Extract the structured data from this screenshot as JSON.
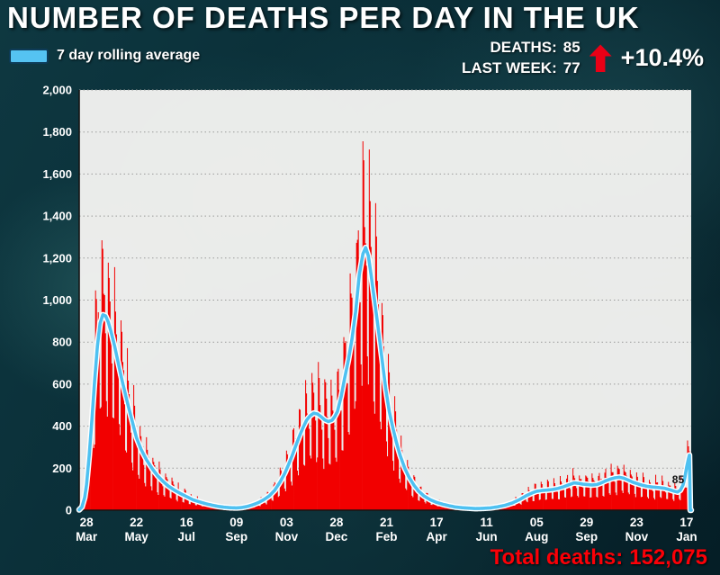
{
  "title": "NUMBER OF DEATHS PER DAY IN THE UK",
  "legend": {
    "label": "7 day rolling average",
    "swatch_color": "#55c3f2"
  },
  "stats": {
    "lines": [
      {
        "label": "DEATHS:",
        "value": "85"
      },
      {
        "label": "LAST WEEK:",
        "value": "77"
      }
    ],
    "change": "+10.4%",
    "arrow_icon": "up-arrow",
    "arrow_color": "#ea0016"
  },
  "footer": {
    "total_label": "Total deaths:",
    "total_value": "152,075",
    "color": "#fb0007"
  },
  "chart_data": {
    "type": "bar+line",
    "title": "NUMBER OF DEATHS PER DAY IN THE UK",
    "xlabel": "",
    "ylabel": "",
    "ylim": [
      0,
      2000
    ],
    "grid": "horizontal-dotted",
    "legend_position": "top-left",
    "bar_color": "#f20000",
    "line_color": "#4ec1f1",
    "x_domain": [
      -8,
      665
    ],
    "tick_days": [
      0,
      55,
      110,
      165,
      220,
      275,
      330,
      385,
      440,
      495,
      550,
      605,
      660
    ],
    "x_ticks": [
      {
        "day": "28",
        "month": "Mar"
      },
      {
        "day": "22",
        "month": "May"
      },
      {
        "day": "16",
        "month": "Jul"
      },
      {
        "day": "09",
        "month": "Sep"
      },
      {
        "day": "03",
        "month": "Nov"
      },
      {
        "day": "28",
        "month": "Dec"
      },
      {
        "day": "21",
        "month": "Feb"
      },
      {
        "day": "17",
        "month": "Apr"
      },
      {
        "day": "11",
        "month": "Jun"
      },
      {
        "day": "05",
        "month": "Aug"
      },
      {
        "day": "29",
        "month": "Sep"
      },
      {
        "day": "23",
        "month": "Nov"
      },
      {
        "day": "17",
        "month": "Jan"
      }
    ],
    "y_ticks": [
      {
        "label": "2,000",
        "value": 2000
      },
      {
        "label": "1,800",
        "value": 1800
      },
      {
        "label": "1,600",
        "value": 1600
      },
      {
        "label": "1,400",
        "value": 1400
      },
      {
        "label": "1,200",
        "value": 1200
      },
      {
        "label": "1,000",
        "value": 1000
      },
      {
        "label": "800",
        "value": 800
      },
      {
        "label": "600",
        "value": 600
      },
      {
        "label": "400",
        "value": 400
      },
      {
        "label": "200",
        "value": 200
      },
      {
        "label": "0",
        "value": 0
      }
    ],
    "series": [
      {
        "name": "Daily deaths",
        "render": "bars"
      },
      {
        "name": "7 day rolling average",
        "render": "line"
      }
    ],
    "rolling_average": [
      [
        -8,
        2
      ],
      [
        -5,
        15
      ],
      [
        -2,
        60
      ],
      [
        0,
        120
      ],
      [
        3,
        260
      ],
      [
        6,
        430
      ],
      [
        9,
        620
      ],
      [
        12,
        780
      ],
      [
        15,
        890
      ],
      [
        18,
        930
      ],
      [
        21,
        925
      ],
      [
        24,
        895
      ],
      [
        27,
        850
      ],
      [
        31,
        780
      ],
      [
        35,
        700
      ],
      [
        39,
        620
      ],
      [
        44,
        530
      ],
      [
        49,
        445
      ],
      [
        55,
        345
      ],
      [
        60,
        290
      ],
      [
        66,
        240
      ],
      [
        72,
        200
      ],
      [
        78,
        165
      ],
      [
        84,
        138
      ],
      [
        90,
        115
      ],
      [
        97,
        95
      ],
      [
        104,
        78
      ],
      [
        110,
        65
      ],
      [
        117,
        50
      ],
      [
        124,
        40
      ],
      [
        131,
        31
      ],
      [
        138,
        24
      ],
      [
        145,
        18
      ],
      [
        152,
        14
      ],
      [
        158,
        12
      ],
      [
        165,
        11
      ],
      [
        171,
        13
      ],
      [
        177,
        18
      ],
      [
        183,
        26
      ],
      [
        189,
        36
      ],
      [
        195,
        50
      ],
      [
        201,
        68
      ],
      [
        207,
        95
      ],
      [
        213,
        135
      ],
      [
        218,
        175
      ],
      [
        222,
        215
      ],
      [
        226,
        258
      ],
      [
        230,
        305
      ],
      [
        234,
        350
      ],
      [
        238,
        392
      ],
      [
        242,
        428
      ],
      [
        246,
        450
      ],
      [
        250,
        462
      ],
      [
        254,
        458
      ],
      [
        258,
        445
      ],
      [
        262,
        430
      ],
      [
        266,
        422
      ],
      [
        270,
        428
      ],
      [
        273,
        445
      ],
      [
        276,
        470
      ],
      [
        280,
        540
      ],
      [
        284,
        630
      ],
      [
        288,
        715
      ],
      [
        292,
        815
      ],
      [
        296,
        945
      ],
      [
        300,
        1120
      ],
      [
        304,
        1220
      ],
      [
        307,
        1250
      ],
      [
        310,
        1210
      ],
      [
        313,
        1120
      ],
      [
        317,
        990
      ],
      [
        321,
        860
      ],
      [
        325,
        720
      ],
      [
        329,
        580
      ],
      [
        333,
        470
      ],
      [
        337,
        390
      ],
      [
        341,
        320
      ],
      [
        345,
        260
      ],
      [
        350,
        200
      ],
      [
        355,
        155
      ],
      [
        360,
        120
      ],
      [
        365,
        92
      ],
      [
        371,
        68
      ],
      [
        378,
        50
      ],
      [
        385,
        37
      ],
      [
        392,
        28
      ],
      [
        399,
        21
      ],
      [
        406,
        15
      ],
      [
        413,
        12
      ],
      [
        420,
        10
      ],
      [
        428,
        8
      ],
      [
        436,
        9
      ],
      [
        444,
        11
      ],
      [
        452,
        16
      ],
      [
        460,
        23
      ],
      [
        468,
        34
      ],
      [
        476,
        50
      ],
      [
        484,
        70
      ],
      [
        490,
        82
      ],
      [
        495,
        90
      ],
      [
        501,
        94
      ],
      [
        507,
        96
      ],
      [
        513,
        99
      ],
      [
        519,
        104
      ],
      [
        525,
        112
      ],
      [
        531,
        122
      ],
      [
        536,
        130
      ],
      [
        541,
        128
      ],
      [
        546,
        124
      ],
      [
        551,
        122
      ],
      [
        556,
        120
      ],
      [
        561,
        122
      ],
      [
        566,
        130
      ],
      [
        571,
        140
      ],
      [
        576,
        148
      ],
      [
        581,
        154
      ],
      [
        586,
        157
      ],
      [
        591,
        152
      ],
      [
        596,
        143
      ],
      [
        601,
        133
      ],
      [
        606,
        126
      ],
      [
        611,
        119
      ],
      [
        616,
        114
      ],
      [
        621,
        111
      ],
      [
        626,
        109
      ],
      [
        631,
        107
      ],
      [
        636,
        104
      ],
      [
        641,
        98
      ],
      [
        646,
        91
      ],
      [
        650,
        87
      ],
      [
        653,
        95
      ],
      [
        656,
        120
      ],
      [
        658,
        155
      ],
      [
        660,
        205
      ],
      [
        662,
        245
      ],
      [
        663,
        262
      ]
    ],
    "daily_pattern": [
      0.9,
      0.55,
      0.5,
      1.42,
      1.3,
      1.15,
      1.05
    ],
    "daily_jitter": [
      0.9,
      0.2
    ],
    "annotation": {
      "text": "85",
      "day": 644,
      "value": 128
    }
  }
}
